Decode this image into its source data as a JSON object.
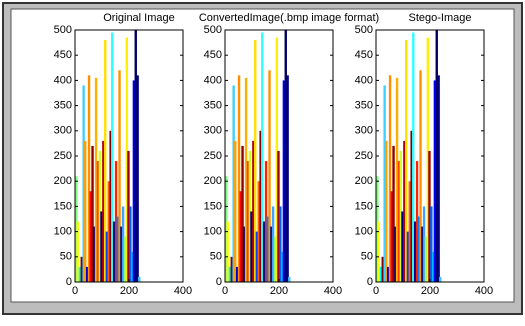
{
  "chart_data": [
    {
      "type": "bar",
      "title": "Original Image",
      "x": [
        5,
        10,
        18,
        25,
        32,
        38,
        45,
        52,
        58,
        65,
        72,
        78,
        85,
        92,
        98,
        105,
        112,
        118,
        125,
        132,
        138,
        145,
        152,
        158,
        165,
        172,
        178,
        185,
        192,
        198,
        205,
        212,
        218,
        225,
        232,
        238
      ],
      "values": [
        210,
        120,
        30,
        50,
        390,
        280,
        30,
        410,
        180,
        270,
        110,
        405,
        240,
        260,
        140,
        280,
        480,
        100,
        200,
        300,
        495,
        120,
        240,
        130,
        420,
        110,
        150,
        90,
        485,
        260,
        150,
        60,
        400,
        500,
        410,
        10
      ],
      "colors": [
        "#7fff7f",
        "#ffff00",
        "#00ffff",
        "#800000",
        "#3fcfff",
        "#ff9f00",
        "#0000cf",
        "#ff8f00",
        "#ff0000",
        "#8f0000",
        "#00007f",
        "#ffaf00",
        "#ff3f00",
        "#cfff2f",
        "#000090",
        "#bf0000",
        "#ffdf00",
        "#0040ff",
        "#ff6000",
        "#7f0000",
        "#30ffff",
        "#000080",
        "#ff2000",
        "#0080ff",
        "#ff9000",
        "#000070",
        "#40a0ff",
        "#8fff6f",
        "#ffef00",
        "#a00000",
        "#0060ff",
        "#00c0ff",
        "#0000ff",
        "#000060",
        "#000080",
        "#40c0ff"
      ],
      "xlim": [
        0,
        400
      ],
      "ylim": [
        0,
        500
      ],
      "xticks": [
        0,
        200,
        400
      ],
      "yticks": [
        0,
        50,
        100,
        150,
        200,
        250,
        300,
        350,
        400,
        450,
        500
      ]
    },
    {
      "type": "bar",
      "title": "ConvertedImage(.bmp image format)",
      "x": [
        5,
        10,
        18,
        25,
        32,
        38,
        45,
        52,
        58,
        65,
        72,
        78,
        85,
        92,
        98,
        105,
        112,
        118,
        125,
        132,
        138,
        145,
        152,
        158,
        165,
        172,
        178,
        185,
        192,
        198,
        205,
        212,
        218,
        225,
        232,
        238
      ],
      "values": [
        210,
        120,
        30,
        50,
        390,
        280,
        30,
        410,
        180,
        270,
        110,
        405,
        240,
        260,
        140,
        280,
        480,
        100,
        200,
        300,
        495,
        120,
        240,
        130,
        420,
        110,
        150,
        90,
        485,
        260,
        150,
        60,
        400,
        500,
        410,
        10
      ],
      "colors": [
        "#7fff7f",
        "#ffff00",
        "#00ffff",
        "#800000",
        "#3fcfff",
        "#ff9f00",
        "#0000cf",
        "#ff8f00",
        "#ff0000",
        "#8f0000",
        "#00007f",
        "#ffaf00",
        "#ff3f00",
        "#cfff2f",
        "#000090",
        "#bf0000",
        "#ffdf00",
        "#0040ff",
        "#ff6000",
        "#7f0000",
        "#30ffff",
        "#000080",
        "#ff2000",
        "#0080ff",
        "#ff9000",
        "#000070",
        "#40a0ff",
        "#8fff6f",
        "#ffef00",
        "#a00000",
        "#0060ff",
        "#00c0ff",
        "#0000ff",
        "#000060",
        "#000080",
        "#40c0ff"
      ],
      "xlim": [
        0,
        400
      ],
      "ylim": [
        0,
        500
      ],
      "xticks": [
        0,
        200,
        400
      ],
      "yticks": [
        0,
        50,
        100,
        150,
        200,
        250,
        300,
        350,
        400,
        450,
        500
      ]
    },
    {
      "type": "bar",
      "title": "Stego-Image",
      "x": [
        5,
        10,
        18,
        25,
        32,
        38,
        45,
        52,
        58,
        65,
        72,
        78,
        85,
        92,
        98,
        105,
        112,
        118,
        125,
        132,
        138,
        145,
        152,
        158,
        165,
        172,
        178,
        185,
        192,
        198,
        205,
        212,
        218,
        225,
        232,
        238
      ],
      "values": [
        210,
        120,
        30,
        50,
        390,
        280,
        30,
        410,
        180,
        270,
        110,
        405,
        240,
        260,
        140,
        280,
        480,
        100,
        200,
        300,
        495,
        120,
        240,
        130,
        420,
        110,
        150,
        90,
        485,
        260,
        150,
        60,
        400,
        500,
        410,
        10
      ],
      "colors": [
        "#7fff7f",
        "#ffff00",
        "#00ffff",
        "#800000",
        "#3fcfff",
        "#ff9f00",
        "#0000cf",
        "#ff8f00",
        "#ff0000",
        "#8f0000",
        "#00007f",
        "#ffaf00",
        "#ff3f00",
        "#cfff2f",
        "#000090",
        "#bf0000",
        "#ffdf00",
        "#0040ff",
        "#ff6000",
        "#7f0000",
        "#30ffff",
        "#000080",
        "#ff2000",
        "#0080ff",
        "#ff9000",
        "#000070",
        "#40a0ff",
        "#8fff6f",
        "#ffef00",
        "#a00000",
        "#0060ff",
        "#00c0ff",
        "#0000ff",
        "#000060",
        "#000080",
        "#40c0ff"
      ],
      "xlim": [
        0,
        400
      ],
      "ylim": [
        0,
        500
      ],
      "xticks": [
        0,
        200,
        400
      ],
      "yticks": [
        0,
        50,
        100,
        150,
        200,
        250,
        300,
        350,
        400,
        450,
        500
      ]
    }
  ]
}
